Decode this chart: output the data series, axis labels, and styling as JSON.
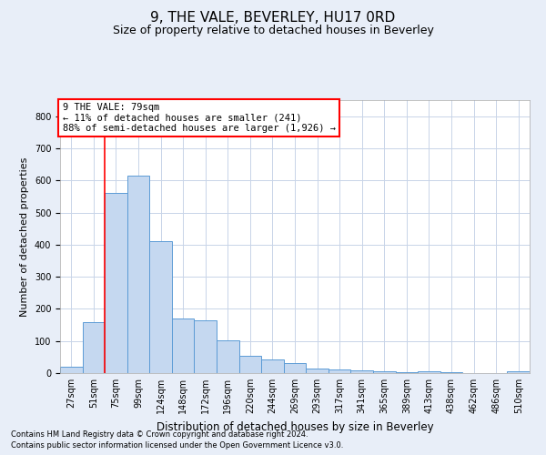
{
  "title": "9, THE VALE, BEVERLEY, HU17 0RD",
  "subtitle": "Size of property relative to detached houses in Beverley",
  "xlabel": "Distribution of detached houses by size in Beverley",
  "ylabel": "Number of detached properties",
  "bar_labels": [
    "27sqm",
    "51sqm",
    "75sqm",
    "99sqm",
    "124sqm",
    "148sqm",
    "172sqm",
    "196sqm",
    "220sqm",
    "244sqm",
    "269sqm",
    "293sqm",
    "317sqm",
    "341sqm",
    "365sqm",
    "389sqm",
    "413sqm",
    "438sqm",
    "462sqm",
    "486sqm",
    "510sqm"
  ],
  "bar_values": [
    20,
    160,
    560,
    615,
    410,
    170,
    165,
    103,
    55,
    43,
    32,
    15,
    10,
    8,
    7,
    3,
    5,
    2,
    1,
    1,
    5
  ],
  "bar_color": "#c5d8f0",
  "bar_edge_color": "#5b9bd5",
  "vline_x_index": 2,
  "vline_color": "red",
  "ylim": [
    0,
    850
  ],
  "yticks": [
    0,
    100,
    200,
    300,
    400,
    500,
    600,
    700,
    800
  ],
  "annotation_text": "9 THE VALE: 79sqm\n← 11% of detached houses are smaller (241)\n88% of semi-detached houses are larger (1,926) →",
  "annotation_box_color": "white",
  "annotation_box_edge_color": "red",
  "footnote1": "Contains HM Land Registry data © Crown copyright and database right 2024.",
  "footnote2": "Contains public sector information licensed under the Open Government Licence v3.0.",
  "grid_color": "#c8d4e8",
  "background_color": "#e8eef8",
  "plot_background_color": "#ffffff",
  "title_fontsize": 11,
  "subtitle_fontsize": 9,
  "annotation_fontsize": 7.5,
  "tick_fontsize": 7,
  "ylabel_fontsize": 8,
  "xlabel_fontsize": 8.5,
  "footnote_fontsize": 6
}
